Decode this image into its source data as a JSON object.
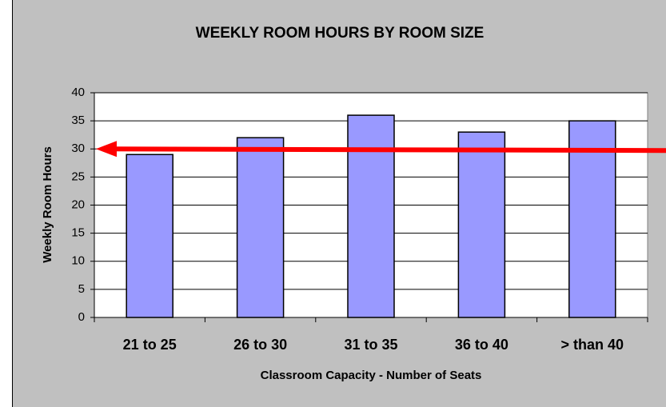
{
  "chart_data": {
    "type": "bar",
    "title": "WEEKLY ROOM HOURS BY ROOM SIZE",
    "x_label": "Classroom Capacity - Number of Seats",
    "y_label": "Weekly Room Hours",
    "categories": [
      "21 to 25",
      "26 to 30",
      "31 to 35",
      "36 to 40",
      "> than 40"
    ],
    "values": [
      29,
      32,
      36,
      33,
      35
    ],
    "color": "#9999ff",
    "ylim": [
      0,
      40
    ],
    "yticks": [
      0,
      5,
      10,
      15,
      20,
      25,
      30,
      35,
      40
    ],
    "grid": true,
    "annotation_arrow": {
      "value": 30,
      "color": "#ff0000"
    }
  }
}
